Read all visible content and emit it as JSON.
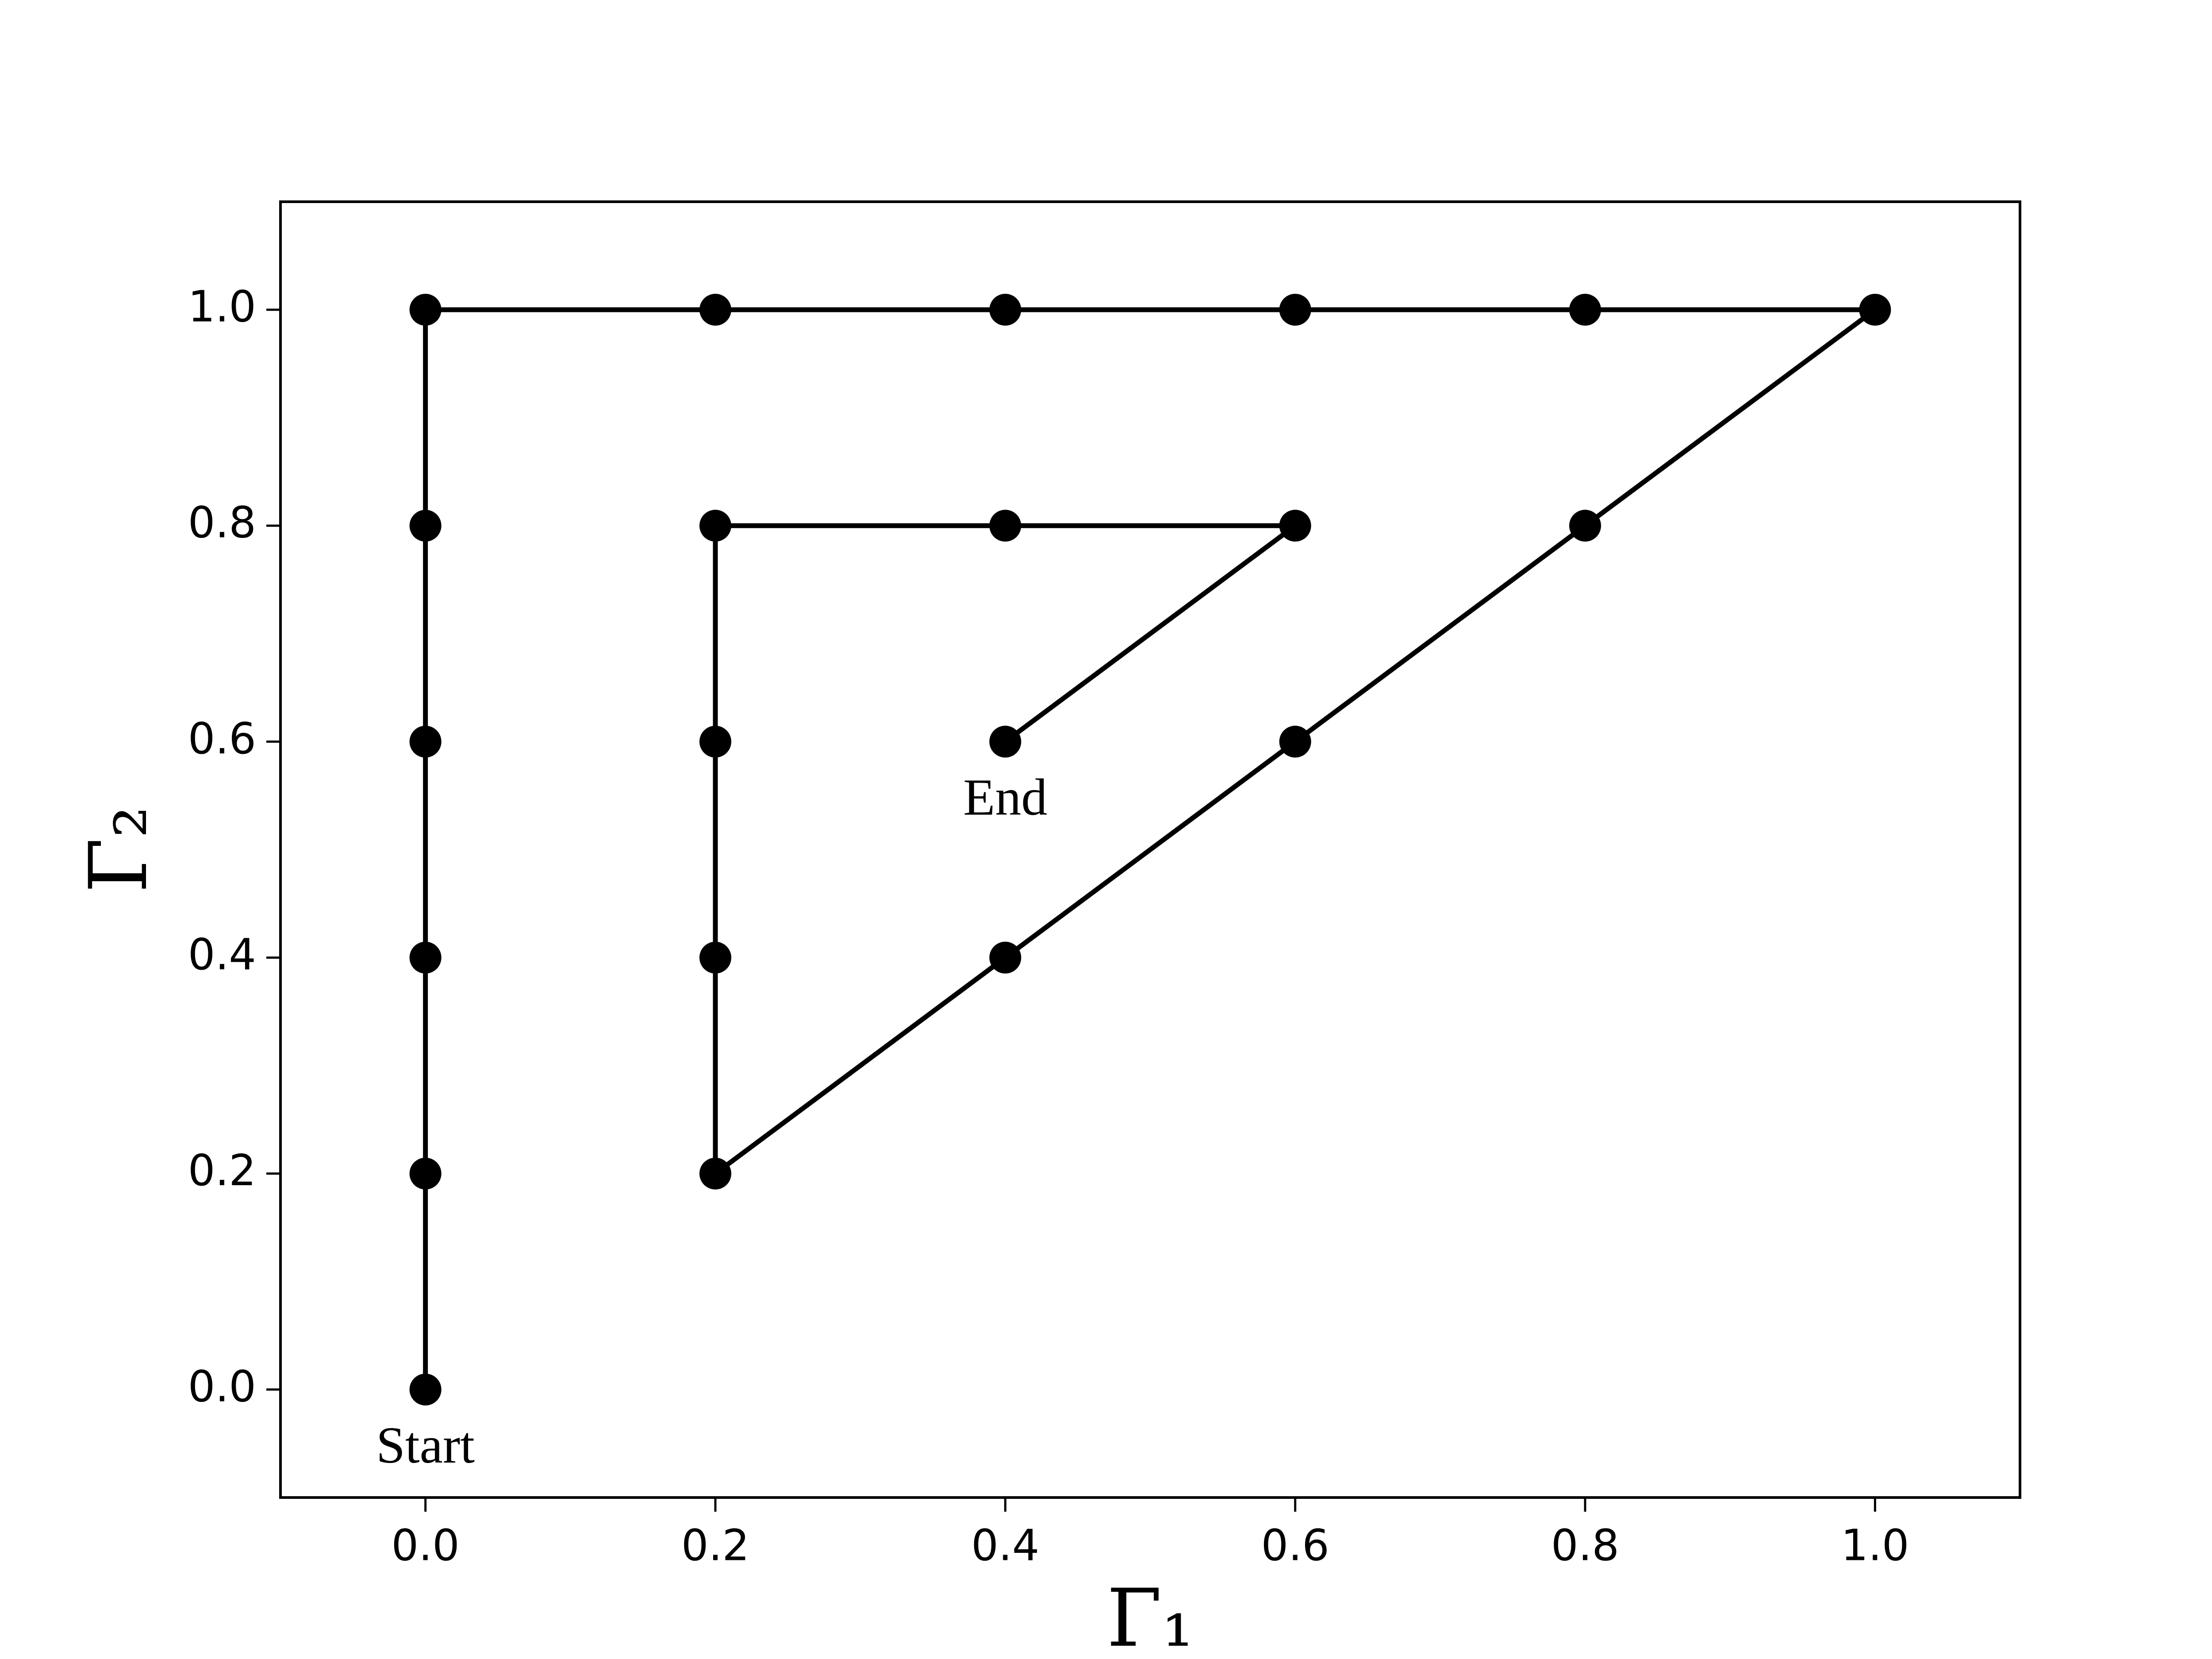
{
  "chart_data": {
    "type": "line",
    "xlabel": "Γ₁",
    "ylabel": "Γ₂",
    "series": [
      {
        "color": "#000000",
        "x": [
          0,
          0,
          0,
          0,
          0,
          0,
          0.2,
          0.4,
          0.6,
          0.8,
          1,
          0.8,
          0.6,
          0.4,
          0.2,
          0.2,
          0.2,
          0.2,
          0.4,
          0.6,
          0.4
        ],
        "y": [
          0,
          0.2,
          0.4,
          0.6,
          0.8,
          1,
          1,
          1,
          1,
          1,
          1,
          0.8,
          0.6,
          0.4,
          0.2,
          0.4,
          0.6,
          0.8,
          0.8,
          0.8,
          0.6
        ]
      }
    ],
    "annotations": [
      {
        "text": "Start",
        "x": 0,
        "y": 0
      },
      {
        "text": "End",
        "x": 0.4,
        "y": 0.6
      }
    ],
    "xlim": [
      -0.1,
      1.1
    ],
    "ylim": [
      -0.1,
      1.1
    ],
    "xticks": [
      {
        "value": 0,
        "label": "0.0"
      },
      0.2,
      0.4,
      0.6,
      0.8,
      {
        "value": 1,
        "label": "1.0"
      }
    ],
    "yticks": [
      {
        "value": 0,
        "label": "0.0"
      },
      0.2,
      0.4,
      0.6,
      0.8,
      {
        "value": 1,
        "label": "1.0"
      }
    ],
    "grid": false
  }
}
